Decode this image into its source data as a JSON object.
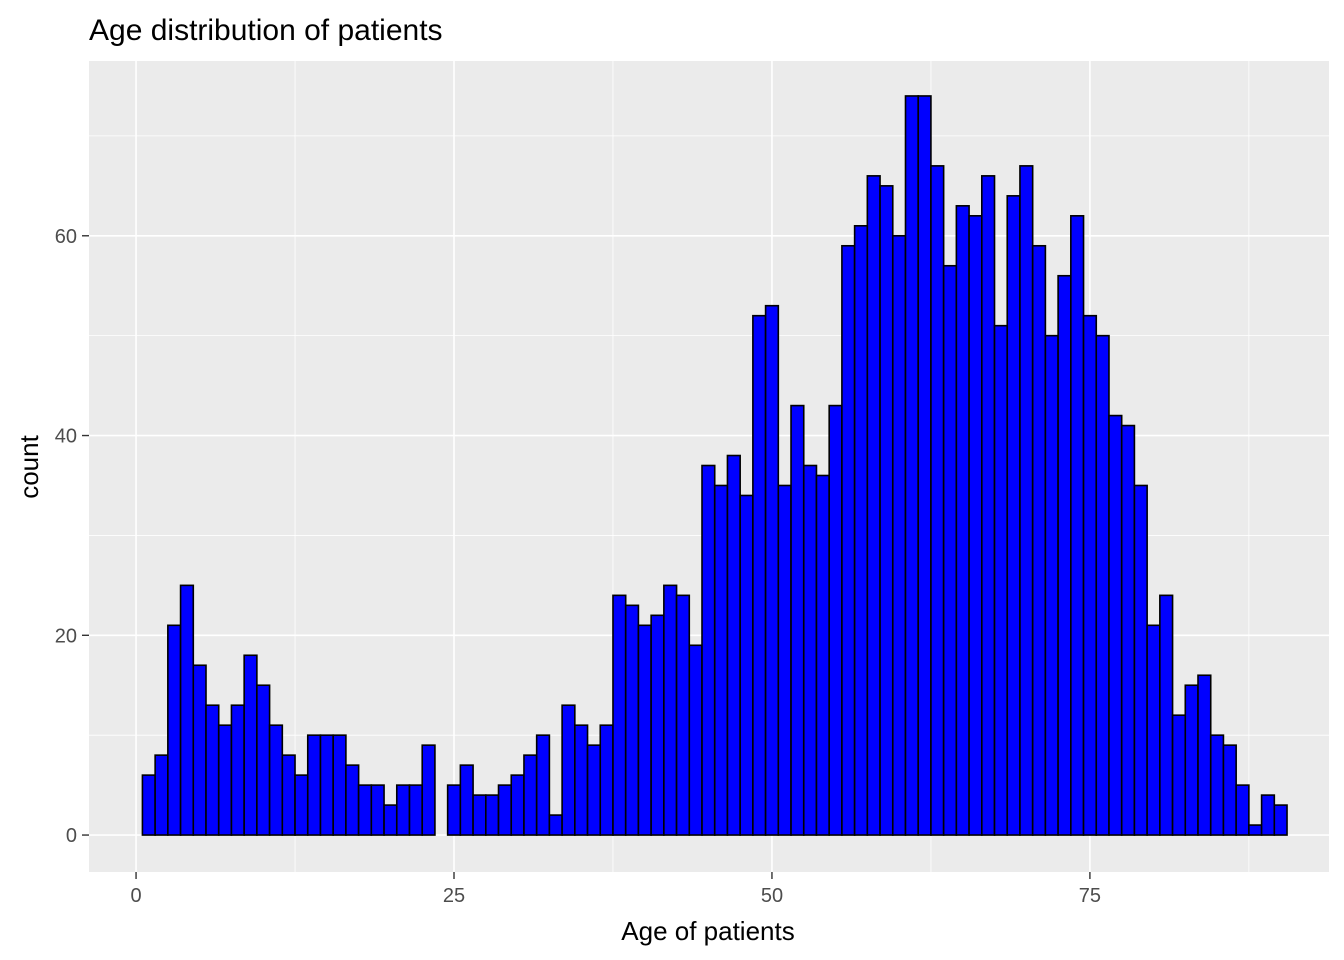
{
  "chart_data": {
    "type": "bar",
    "title": "Age distribution of patients",
    "xlabel": "Age of patients",
    "ylabel": "count",
    "xlim": [
      -3.7,
      93.8
    ],
    "ylim": [
      -3.7,
      77.5
    ],
    "x_ticks": [
      0,
      25,
      50,
      75
    ],
    "y_ticks": [
      0,
      20,
      40,
      60
    ],
    "grid": true,
    "bar_fill": "#0000ff",
    "bar_outline": "#000000",
    "panel_background": "#ebebeb",
    "bin_width": 1,
    "x": [
      1,
      2,
      3,
      4,
      5,
      6,
      7,
      8,
      9,
      10,
      11,
      12,
      13,
      14,
      15,
      16,
      17,
      18,
      19,
      20,
      21,
      22,
      23,
      24,
      25,
      26,
      27,
      28,
      29,
      30,
      31,
      32,
      33,
      34,
      35,
      36,
      37,
      38,
      39,
      40,
      41,
      42,
      43,
      44,
      45,
      46,
      47,
      48,
      49,
      50,
      51,
      52,
      53,
      54,
      55,
      56,
      57,
      58,
      59,
      60,
      61,
      62,
      63,
      64,
      65,
      66,
      67,
      68,
      69,
      70,
      71,
      72,
      73,
      74,
      75,
      76,
      77,
      78,
      79,
      80,
      81,
      82,
      83,
      84,
      85,
      86,
      87,
      88,
      89,
      90
    ],
    "values": [
      6,
      8,
      21,
      25,
      17,
      13,
      11,
      13,
      18,
      15,
      11,
      8,
      6,
      10,
      10,
      10,
      7,
      5,
      5,
      3,
      5,
      5,
      9,
      0,
      5,
      7,
      4,
      4,
      5,
      6,
      8,
      10,
      2,
      13,
      11,
      9,
      11,
      24,
      23,
      21,
      22,
      25,
      24,
      19,
      37,
      35,
      38,
      34,
      52,
      53,
      35,
      43,
      37,
      36,
      43,
      59,
      61,
      66,
      65,
      60,
      74,
      74,
      67,
      57,
      63,
      62,
      66,
      51,
      64,
      67,
      59,
      50,
      56,
      62,
      52,
      50,
      42,
      41,
      35,
      21,
      24,
      12,
      15,
      16,
      10,
      9,
      5,
      1,
      4,
      3
    ]
  }
}
